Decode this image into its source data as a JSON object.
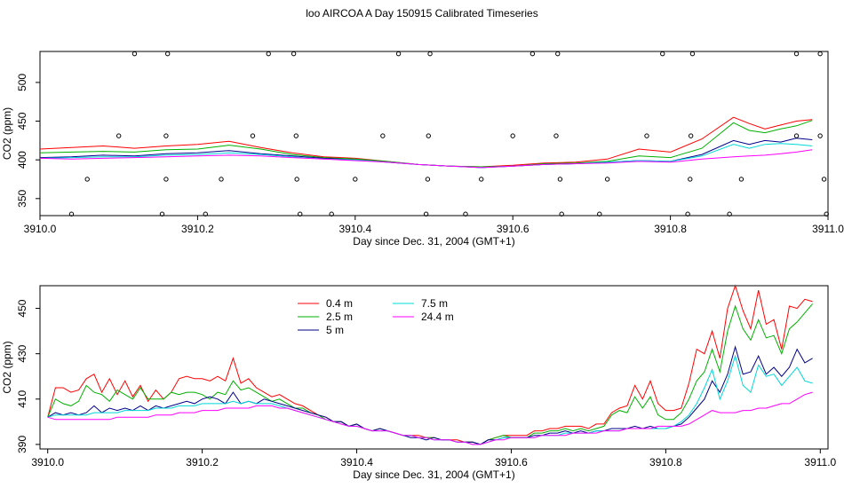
{
  "figure": {
    "title": "loo AIRCOA A  Day 150915  Calibrated Timeseries"
  },
  "chart_data": [
    {
      "type": "line",
      "xlabel": "Day since Dec. 31, 2004 (GMT+1)",
      "ylabel": "CO2 (ppm)",
      "xlim": [
        3910.0,
        3911.0
      ],
      "ylim": [
        328,
        540
      ],
      "xticks": [
        "3910.0",
        "3910.2",
        "3910.4",
        "3910.6",
        "3910.8",
        "3911.0"
      ],
      "yticks": [
        "350",
        "400",
        "450",
        "500"
      ],
      "x": [
        3910.0,
        3910.04,
        3910.08,
        3910.12,
        3910.16,
        3910.2,
        3910.24,
        3910.28,
        3910.32,
        3910.36,
        3910.4,
        3910.44,
        3910.48,
        3910.52,
        3910.56,
        3910.6,
        3910.64,
        3910.68,
        3910.72,
        3910.76,
        3910.8,
        3910.84,
        3910.88,
        3910.9,
        3910.92,
        3910.94,
        3910.96,
        3910.98
      ],
      "series": [
        {
          "name": "0.4 m",
          "color": "#ff0000",
          "values": [
            414,
            416,
            418,
            415,
            418,
            420,
            424,
            416,
            409,
            404,
            402,
            398,
            394,
            392,
            391,
            393,
            396,
            397,
            401,
            414,
            410,
            427,
            455,
            447,
            440,
            445,
            450,
            452
          ]
        },
        {
          "name": "2.5 m",
          "color": "#00b000",
          "values": [
            409,
            410,
            411,
            410,
            413,
            414,
            419,
            414,
            407,
            403,
            401,
            398,
            394,
            392,
            391,
            392,
            395,
            396,
            398,
            405,
            403,
            415,
            448,
            438,
            435,
            440,
            444,
            451
          ]
        },
        {
          "name": "5 m",
          "color": "#00008b",
          "values": [
            403,
            404,
            406,
            405,
            408,
            409,
            412,
            408,
            405,
            402,
            400,
            397,
            394,
            392,
            390,
            392,
            394,
            395,
            397,
            399,
            398,
            407,
            425,
            420,
            425,
            423,
            428,
            426
          ]
        },
        {
          "name": "7.5 m",
          "color": "#00d8d8",
          "values": [
            402,
            403,
            404,
            404,
            406,
            407,
            409,
            407,
            404,
            401,
            400,
            397,
            394,
            392,
            390,
            392,
            394,
            395,
            397,
            399,
            398,
            405,
            420,
            415,
            420,
            421,
            420,
            418
          ]
        },
        {
          "name": "24.4 m",
          "color": "#ff00ff",
          "values": [
            402,
            401,
            402,
            403,
            404,
            405,
            406,
            405,
            403,
            401,
            399,
            397,
            394,
            392,
            390,
            392,
            394,
            395,
            396,
            398,
            397,
            401,
            404,
            405,
            406,
            408,
            410,
            413
          ]
        }
      ],
      "scatter_points": [
        [
          3910.04,
          330
        ],
        [
          3910.06,
          375
        ],
        [
          3910.1,
          431
        ],
        [
          3910.12,
          537
        ],
        [
          3910.155,
          330
        ],
        [
          3910.16,
          375
        ],
        [
          3910.16,
          431
        ],
        [
          3910.162,
          537
        ],
        [
          3910.21,
          330
        ],
        [
          3910.23,
          375
        ],
        [
          3910.27,
          431
        ],
        [
          3910.29,
          537
        ],
        [
          3910.322,
          537
        ],
        [
          3910.325,
          431
        ],
        [
          3910.326,
          375
        ],
        [
          3910.33,
          330
        ],
        [
          3910.37,
          330
        ],
        [
          3910.4,
          375
        ],
        [
          3910.435,
          431
        ],
        [
          3910.455,
          537
        ],
        [
          3910.49,
          330
        ],
        [
          3910.492,
          375
        ],
        [
          3910.493,
          431
        ],
        [
          3910.495,
          537
        ],
        [
          3910.54,
          330
        ],
        [
          3910.56,
          375
        ],
        [
          3910.6,
          431
        ],
        [
          3910.625,
          537
        ],
        [
          3910.655,
          431
        ],
        [
          3910.657,
          537
        ],
        [
          3910.66,
          375
        ],
        [
          3910.662,
          330
        ],
        [
          3910.71,
          330
        ],
        [
          3910.72,
          375
        ],
        [
          3910.77,
          431
        ],
        [
          3910.79,
          537
        ],
        [
          3910.822,
          330
        ],
        [
          3910.825,
          375
        ],
        [
          3910.826,
          431
        ],
        [
          3910.828,
          537
        ],
        [
          3910.875,
          330
        ],
        [
          3910.89,
          375
        ],
        [
          3910.96,
          431
        ],
        [
          3910.96,
          537
        ],
        [
          3910.99,
          537
        ],
        [
          3910.99,
          431
        ],
        [
          3910.995,
          375
        ],
        [
          3910.998,
          330
        ]
      ]
    },
    {
      "type": "line",
      "xlabel": "Day since Dec. 31, 2004 (GMT+1)",
      "ylabel": "CO2 (ppm)",
      "xlim": [
        3909.99,
        3911.01
      ],
      "ylim": [
        388,
        460
      ],
      "xticks": [
        "3910.0",
        "3910.2",
        "3910.4",
        "3910.6",
        "3910.8",
        "3911.0"
      ],
      "yticks": [
        "390",
        "410",
        "430",
        "450"
      ],
      "legend": {
        "position": "top-center"
      },
      "x": [
        3910.0,
        3910.01,
        3910.02,
        3910.03,
        3910.04,
        3910.05,
        3910.06,
        3910.07,
        3910.08,
        3910.09,
        3910.1,
        3910.11,
        3910.12,
        3910.13,
        3910.14,
        3910.15,
        3910.16,
        3910.17,
        3910.18,
        3910.19,
        3910.2,
        3910.21,
        3910.22,
        3910.23,
        3910.24,
        3910.25,
        3910.26,
        3910.27,
        3910.28,
        3910.29,
        3910.3,
        3910.31,
        3910.32,
        3910.33,
        3910.34,
        3910.35,
        3910.36,
        3910.37,
        3910.38,
        3910.39,
        3910.4,
        3910.41,
        3910.42,
        3910.43,
        3910.44,
        3910.45,
        3910.46,
        3910.47,
        3910.48,
        3910.49,
        3910.5,
        3910.51,
        3910.52,
        3910.53,
        3910.54,
        3910.55,
        3910.56,
        3910.57,
        3910.58,
        3910.59,
        3910.6,
        3910.61,
        3910.62,
        3910.63,
        3910.64,
        3910.65,
        3910.66,
        3910.67,
        3910.68,
        3910.69,
        3910.7,
        3910.71,
        3910.72,
        3910.73,
        3910.74,
        3910.75,
        3910.76,
        3910.77,
        3910.78,
        3910.79,
        3910.8,
        3910.81,
        3910.82,
        3910.83,
        3910.84,
        3910.85,
        3910.86,
        3910.87,
        3910.88,
        3910.89,
        3910.9,
        3910.91,
        3910.92,
        3910.93,
        3910.94,
        3910.95,
        3910.96,
        3910.97,
        3910.98,
        3910.99
      ],
      "series": [
        {
          "name": "0.4 m",
          "color": "#ff0000",
          "values": [
            402,
            415,
            415,
            413,
            414,
            419,
            421,
            413,
            419,
            412,
            418,
            411,
            416,
            409,
            414,
            410,
            413,
            419,
            420,
            419,
            419,
            418,
            420,
            418,
            428,
            417,
            419,
            415,
            413,
            411,
            412,
            410,
            408,
            407,
            405,
            403,
            402,
            400,
            400,
            398,
            399,
            397,
            396,
            397,
            396,
            395,
            394,
            394,
            394,
            393,
            393,
            392,
            392,
            392,
            391,
            391,
            390,
            392,
            393,
            394,
            394,
            394,
            394,
            396,
            396,
            397,
            397,
            398,
            398,
            398,
            397,
            399,
            399,
            404,
            406,
            407,
            416,
            410,
            418,
            408,
            405,
            405,
            406,
            417,
            432,
            430,
            440,
            428,
            450,
            460,
            449,
            441,
            458,
            443,
            445,
            432,
            451,
            450,
            454,
            453
          ]
        },
        {
          "name": "2.5 m",
          "color": "#00b000",
          "values": [
            402,
            410,
            408,
            407,
            409,
            416,
            413,
            412,
            409,
            414,
            412,
            410,
            415,
            410,
            410,
            410,
            413,
            412,
            413,
            413,
            412,
            410,
            413,
            412,
            418,
            414,
            415,
            413,
            411,
            409,
            410,
            408,
            406,
            406,
            404,
            403,
            401,
            400,
            400,
            398,
            399,
            397,
            396,
            397,
            396,
            395,
            394,
            394,
            393,
            393,
            393,
            392,
            392,
            391,
            391,
            391,
            390,
            392,
            393,
            394,
            393,
            393,
            393,
            395,
            395,
            396,
            396,
            397,
            396,
            397,
            396,
            397,
            398,
            403,
            405,
            404,
            411,
            406,
            411,
            403,
            401,
            401,
            404,
            410,
            418,
            422,
            432,
            422,
            440,
            451,
            441,
            436,
            445,
            437,
            438,
            430,
            441,
            444,
            448,
            452
          ]
        },
        {
          "name": "5 m",
          "color": "#00008b",
          "values": [
            402,
            404,
            403,
            404,
            403,
            404,
            407,
            404,
            406,
            405,
            406,
            405,
            407,
            405,
            407,
            406,
            407,
            408,
            409,
            408,
            410,
            411,
            410,
            408,
            413,
            408,
            409,
            408,
            410,
            409,
            408,
            407,
            406,
            405,
            404,
            403,
            402,
            400,
            400,
            398,
            399,
            397,
            396,
            397,
            396,
            395,
            394,
            393,
            393,
            392,
            393,
            392,
            392,
            391,
            391,
            391,
            390,
            392,
            392,
            393,
            393,
            393,
            393,
            394,
            394,
            395,
            395,
            396,
            395,
            396,
            395,
            396,
            396,
            397,
            397,
            397,
            398,
            397,
            398,
            397,
            397,
            398,
            399,
            402,
            406,
            410,
            418,
            413,
            421,
            433,
            421,
            422,
            429,
            421,
            424,
            420,
            424,
            432,
            426,
            428
          ]
        },
        {
          "name": "7.5 m",
          "color": "#00d8d8",
          "values": [
            402,
            403,
            403,
            403,
            403,
            403,
            404,
            404,
            404,
            404,
            405,
            405,
            405,
            405,
            406,
            406,
            406,
            407,
            407,
            407,
            408,
            408,
            408,
            408,
            409,
            408,
            409,
            408,
            408,
            408,
            407,
            406,
            405,
            404,
            403,
            402,
            401,
            400,
            399,
            398,
            398,
            397,
            396,
            396,
            396,
            395,
            394,
            394,
            393,
            393,
            392,
            392,
            392,
            391,
            391,
            390,
            390,
            391,
            392,
            393,
            393,
            393,
            393,
            393,
            394,
            394,
            394,
            395,
            395,
            395,
            395,
            396,
            396,
            396,
            396,
            397,
            397,
            397,
            397,
            397,
            397,
            398,
            400,
            403,
            408,
            415,
            423,
            410,
            418,
            429,
            416,
            413,
            425,
            420,
            421,
            416,
            420,
            424,
            418,
            417
          ]
        },
        {
          "name": "24.4 m",
          "color": "#ff00ff",
          "values": [
            402,
            401,
            401,
            401,
            401,
            401,
            401,
            401,
            401,
            402,
            402,
            402,
            402,
            402,
            403,
            403,
            403,
            404,
            404,
            404,
            405,
            405,
            405,
            406,
            406,
            406,
            406,
            407,
            407,
            407,
            406,
            406,
            405,
            404,
            403,
            402,
            401,
            400,
            399,
            398,
            398,
            397,
            396,
            396,
            396,
            395,
            394,
            394,
            393,
            393,
            392,
            392,
            392,
            391,
            391,
            390,
            390,
            391,
            392,
            392,
            393,
            393,
            393,
            393,
            394,
            394,
            394,
            394,
            395,
            395,
            395,
            395,
            396,
            396,
            396,
            397,
            397,
            397,
            397,
            398,
            398,
            398,
            398,
            399,
            401,
            403,
            405,
            404,
            404,
            404,
            405,
            405,
            406,
            406,
            407,
            408,
            408,
            410,
            412,
            413
          ]
        }
      ]
    }
  ]
}
